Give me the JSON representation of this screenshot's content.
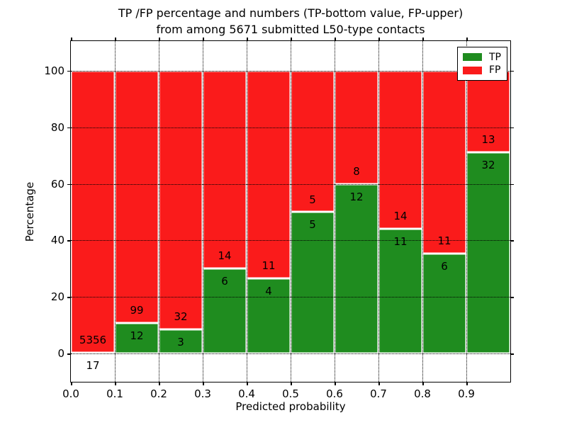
{
  "chart_data": {
    "type": "bar",
    "stacked": true,
    "title_lines": [
      "TP /FP percentage and numbers (TP-bottom value, FP-upper)",
      "from among 5671 submitted L50-type contacts"
    ],
    "xlabel": "Predicted probability",
    "ylabel": "Percentage",
    "x_tick_labels": [
      "0.0",
      "0.1",
      "0.2",
      "0.3",
      "0.4",
      "0.5",
      "0.6",
      "0.7",
      "0.8",
      "0.9"
    ],
    "y_tick_values": [
      0,
      20,
      40,
      60,
      80,
      100
    ],
    "xlim": [
      0.0,
      1.0
    ],
    "ylim": [
      -10,
      110.5
    ],
    "grid": {
      "on": true,
      "style": "dotted",
      "color": "#000000",
      "above_bars": true
    },
    "bins": [
      {
        "range": [
          0.0,
          0.1
        ],
        "tp": 17,
        "fp": 5356
      },
      {
        "range": [
          0.1,
          0.2
        ],
        "tp": 12,
        "fp": 99
      },
      {
        "range": [
          0.2,
          0.3
        ],
        "tp": 3,
        "fp": 32
      },
      {
        "range": [
          0.3,
          0.4
        ],
        "tp": 6,
        "fp": 14
      },
      {
        "range": [
          0.4,
          0.5
        ],
        "tp": 4,
        "fp": 11
      },
      {
        "range": [
          0.5,
          0.6
        ],
        "tp": 5,
        "fp": 5
      },
      {
        "range": [
          0.6,
          0.7
        ],
        "tp": 12,
        "fp": 8
      },
      {
        "range": [
          0.7,
          0.8
        ],
        "tp": 11,
        "fp": 14
      },
      {
        "range": [
          0.8,
          0.9
        ],
        "tp": 6,
        "fp": 11
      },
      {
        "range": [
          0.9,
          1.0
        ],
        "tp": 32,
        "fp": 13
      }
    ],
    "tp_percentages": [
      0.32,
      10.81,
      8.57,
      30.0,
      26.67,
      50.0,
      60.0,
      44.0,
      35.29,
      71.11
    ],
    "legend": {
      "position": "upper-right",
      "entries": [
        {
          "label": "TP",
          "color": "#1f8c1f"
        },
        {
          "label": "FP",
          "color": "#fa1b1b"
        }
      ]
    },
    "colors": {
      "tp": "#1f8c1f",
      "fp": "#fa1b1b",
      "bar_edge": "#ffffff",
      "background": "#ffffff",
      "axis": "#000000",
      "text": "#000000"
    }
  }
}
